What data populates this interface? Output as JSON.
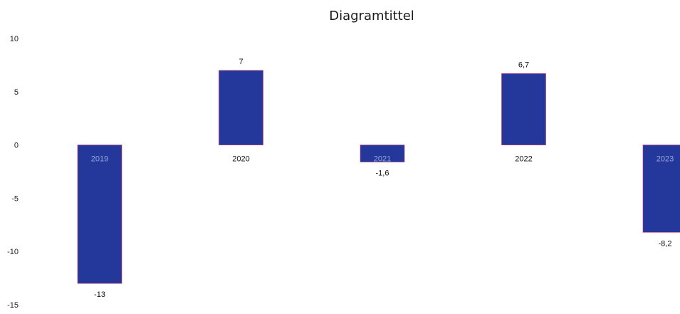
{
  "chart_data": {
    "type": "bar",
    "title": "Diagramtittel",
    "categories": [
      "2019",
      "2020",
      "2021",
      "2022",
      "2023"
    ],
    "series": [
      {
        "values": [
          -13,
          7,
          -1.6,
          6.7,
          -8.2
        ]
      }
    ],
    "data_labels": [
      "-13",
      "7",
      "-1,6",
      "6,7",
      "-8,2"
    ],
    "y_ticks": [
      10,
      5,
      0,
      -5,
      -10,
      -15
    ],
    "y_tick_labels": [
      "10",
      "5",
      "0",
      "-5",
      "-10",
      "-15"
    ],
    "ylim": [
      -15,
      10
    ],
    "grid": false,
    "legend": "none",
    "colors": {
      "bar": "#24389c",
      "bar_edge": "#c0306a",
      "category_label_outside": "#111111",
      "category_label_inside": "#9aa6d8"
    }
  }
}
